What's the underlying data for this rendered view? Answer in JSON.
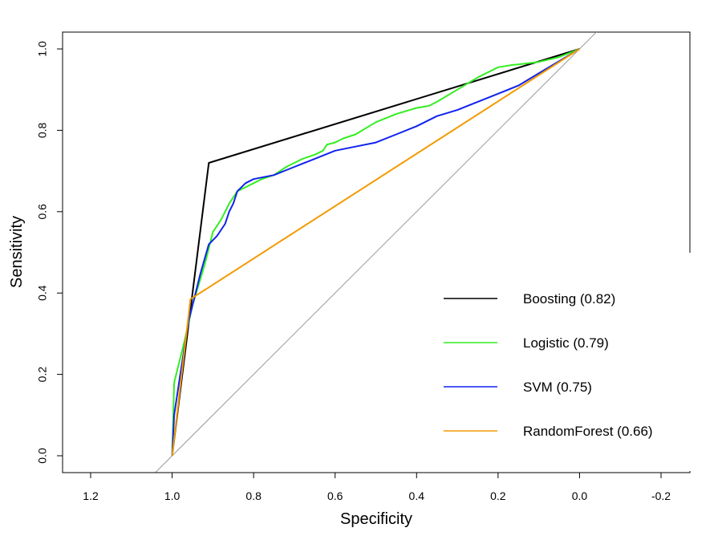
{
  "chart_data": {
    "type": "line",
    "xlabel": "Specificity",
    "ylabel": "Sensitivity",
    "x_reversed": true,
    "xlim": [
      1.2,
      -0.2
    ],
    "ylim": [
      0.0,
      1.0
    ],
    "x_ticks": [
      1.2,
      1.0,
      0.8,
      0.6,
      0.4,
      0.2,
      0.0,
      -0.2
    ],
    "x_tick_labels": [
      "1.2",
      "1.0",
      "0.8",
      "0.6",
      "0.4",
      "0.2",
      "0.0",
      "-0.2"
    ],
    "y_ticks": [
      0.0,
      0.2,
      0.4,
      0.6,
      0.8,
      1.0
    ],
    "y_tick_labels": [
      "0.0",
      "0.2",
      "0.4",
      "0.6",
      "0.8",
      "1.0"
    ],
    "reference_line": {
      "from": [
        1.0,
        0.0
      ],
      "to": [
        0.0,
        1.0
      ],
      "color": "#999999"
    },
    "legend_position": "bottom-right",
    "series": [
      {
        "name": "Boosting (0.82)",
        "color": "#000000",
        "x": [
          1.0,
          0.91,
          0.0
        ],
        "y": [
          0.0,
          0.72,
          1.0
        ]
      },
      {
        "name": "Logistic (0.79)",
        "color": "#33ee22",
        "x": [
          1.0,
          0.995,
          0.97,
          0.95,
          0.92,
          0.9,
          0.88,
          0.86,
          0.84,
          0.82,
          0.8,
          0.78,
          0.75,
          0.72,
          0.7,
          0.68,
          0.65,
          0.63,
          0.62,
          0.6,
          0.58,
          0.55,
          0.5,
          0.45,
          0.4,
          0.37,
          0.35,
          0.3,
          0.25,
          0.2,
          0.17,
          0.15,
          0.1,
          0.05,
          0.0
        ],
        "y": [
          0.0,
          0.18,
          0.28,
          0.37,
          0.47,
          0.55,
          0.58,
          0.62,
          0.65,
          0.66,
          0.67,
          0.68,
          0.69,
          0.71,
          0.72,
          0.73,
          0.74,
          0.75,
          0.765,
          0.77,
          0.78,
          0.79,
          0.82,
          0.84,
          0.855,
          0.86,
          0.87,
          0.9,
          0.93,
          0.955,
          0.96,
          0.962,
          0.968,
          0.98,
          1.0
        ]
      },
      {
        "name": "SVM (0.75)",
        "color": "#1122ee",
        "x": [
          1.0,
          0.995,
          0.98,
          0.96,
          0.93,
          0.91,
          0.89,
          0.87,
          0.86,
          0.85,
          0.84,
          0.82,
          0.8,
          0.75,
          0.7,
          0.65,
          0.6,
          0.55,
          0.5,
          0.45,
          0.4,
          0.35,
          0.3,
          0.25,
          0.2,
          0.15,
          0.1,
          0.05,
          0.0
        ],
        "y": [
          0.0,
          0.1,
          0.2,
          0.33,
          0.45,
          0.52,
          0.54,
          0.57,
          0.6,
          0.62,
          0.65,
          0.67,
          0.68,
          0.69,
          0.71,
          0.73,
          0.75,
          0.76,
          0.77,
          0.79,
          0.81,
          0.835,
          0.85,
          0.87,
          0.89,
          0.91,
          0.94,
          0.97,
          1.0
        ]
      },
      {
        "name": "RandomForest (0.66)",
        "color": "#f39a00",
        "x": [
          1.0,
          0.955,
          0.0
        ],
        "y": [
          0.0,
          0.385,
          1.0
        ]
      }
    ]
  }
}
